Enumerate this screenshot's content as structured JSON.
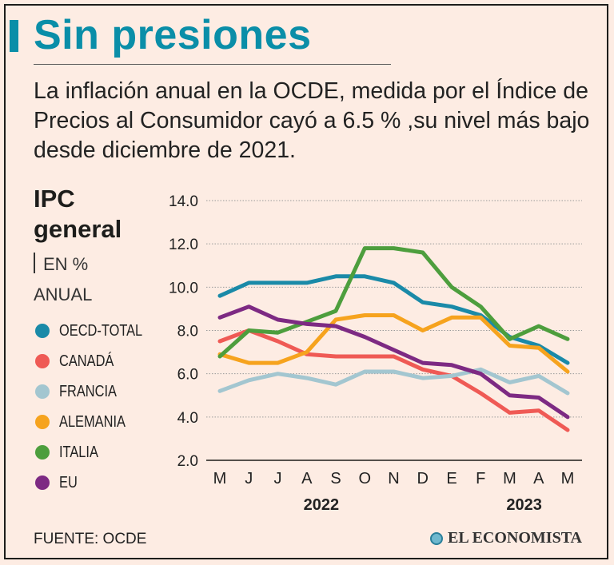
{
  "header": {
    "title": "Sin presiones",
    "subtitle": "La inflación anual en la OCDE, medida por el Índice de Precios al Consumidor cayó a 6.5 % ,su nivel más bajo desde diciembre de 2021."
  },
  "panel": {
    "title_line1": "IPC",
    "title_line2": "general",
    "unit_line1": "EN %",
    "unit_line2": "ANUAL"
  },
  "footer": {
    "source": "FUENTE:  OCDE",
    "brand": "EL ECONOMISTA"
  },
  "colors": {
    "accent": "#0a8ea8",
    "grid": "#9a9a9a"
  },
  "chart_data": {
    "type": "line",
    "title": "IPC general",
    "ylabel": "EN % ANUAL",
    "xlabel": "",
    "ylim": [
      2.0,
      14.0
    ],
    "yticks": [
      "14.0",
      "12.0",
      "10.0",
      "8.0",
      "6.0",
      "4.0",
      "2.0"
    ],
    "ytick_values": [
      14,
      12,
      10,
      8,
      6,
      4,
      2
    ],
    "categories": [
      "M",
      "J",
      "J",
      "A",
      "S",
      "O",
      "N",
      "D",
      "E",
      "F",
      "M",
      "A",
      "M"
    ],
    "year_labels": [
      "2022",
      "2023"
    ],
    "series": [
      {
        "name": "OECD-TOTAL",
        "color": "#1a8aa8",
        "values": [
          9.6,
          10.2,
          10.2,
          10.2,
          10.5,
          10.5,
          10.2,
          9.3,
          9.1,
          8.7,
          7.7,
          7.3,
          6.5
        ]
      },
      {
        "name": "CANADÁ",
        "color": "#ef5a55",
        "values": [
          7.5,
          8.0,
          7.5,
          6.9,
          6.8,
          6.8,
          6.8,
          6.2,
          5.9,
          5.1,
          4.2,
          4.3,
          3.4
        ]
      },
      {
        "name": "FRANCIA",
        "color": "#a3c6d0",
        "values": [
          5.2,
          5.7,
          6.0,
          5.8,
          5.5,
          6.1,
          6.1,
          5.8,
          5.9,
          6.2,
          5.6,
          5.9,
          5.1
        ]
      },
      {
        "name": "ALEMANIA",
        "color": "#f6a31e",
        "values": [
          6.9,
          6.5,
          6.5,
          7.0,
          8.5,
          8.7,
          8.7,
          8.0,
          8.6,
          8.6,
          7.3,
          7.2,
          6.1
        ]
      },
      {
        "name": "ITALIA",
        "color": "#4d9e3d",
        "values": [
          6.8,
          8.0,
          7.9,
          8.4,
          8.9,
          11.8,
          11.8,
          11.6,
          10.0,
          9.1,
          7.6,
          8.2,
          7.6
        ]
      },
      {
        "name": "EU",
        "color": "#7d2a83",
        "values": [
          8.6,
          9.1,
          8.5,
          8.3,
          8.2,
          7.7,
          7.1,
          6.5,
          6.4,
          6.0,
          5.0,
          4.9,
          4.0
        ]
      }
    ]
  }
}
